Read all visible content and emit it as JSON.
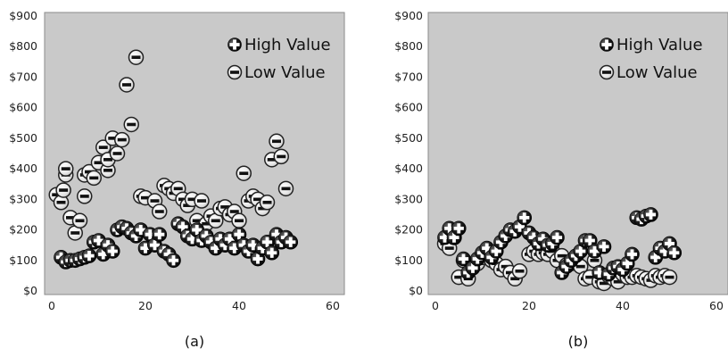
{
  "chart_data": [
    {
      "type": "scatter",
      "caption": "(a)",
      "xlim": [
        0,
        60
      ],
      "ylim": [
        0,
        900
      ],
      "x_ticks": [
        "0",
        "20",
        "40",
        "60"
      ],
      "y_ticks": [
        "$0",
        "$100",
        "$200",
        "$300",
        "$400",
        "$500",
        "$600",
        "$700",
        "$800",
        "$900"
      ],
      "grid": false,
      "legend_position": "top-right",
      "series": [
        {
          "name": "High Value",
          "marker": "plus",
          "points": [
            [
              2,
              110
            ],
            [
              3,
              95
            ],
            [
              4,
              100
            ],
            [
              5,
              100
            ],
            [
              6,
              105
            ],
            [
              7,
              110
            ],
            [
              8,
              115
            ],
            [
              9,
              160
            ],
            [
              10,
              165
            ],
            [
              11,
              120
            ],
            [
              12,
              150
            ],
            [
              13,
              130
            ],
            [
              14,
              200
            ],
            [
              15,
              210
            ],
            [
              16,
              205
            ],
            [
              17,
              190
            ],
            [
              18,
              180
            ],
            [
              19,
              200
            ],
            [
              20,
              140
            ],
            [
              21,
              185
            ],
            [
              22,
              150
            ],
            [
              23,
              185
            ],
            [
              24,
              130
            ],
            [
              25,
              120
            ],
            [
              26,
              100
            ],
            [
              27,
              220
            ],
            [
              28,
              210
            ],
            [
              29,
              180
            ],
            [
              30,
              170
            ],
            [
              31,
              200
            ],
            [
              32,
              165
            ],
            [
              33,
              180
            ],
            [
              34,
              160
            ],
            [
              35,
              140
            ],
            [
              36,
              170
            ],
            [
              37,
              150
            ],
            [
              38,
              170
            ],
            [
              39,
              140
            ],
            [
              40,
              185
            ],
            [
              41,
              150
            ],
            [
              42,
              130
            ],
            [
              43,
              150
            ],
            [
              44,
              105
            ],
            [
              45,
              140
            ],
            [
              46,
              160
            ],
            [
              47,
              125
            ],
            [
              48,
              185
            ],
            [
              49,
              160
            ],
            [
              50,
              175
            ],
            [
              51,
              160
            ]
          ]
        },
        {
          "name": "Low Value",
          "marker": "minus",
          "points": [
            [
              1,
              315
            ],
            [
              2,
              290
            ],
            [
              2.5,
              330
            ],
            [
              3,
              380
            ],
            [
              3,
              400
            ],
            [
              4,
              240
            ],
            [
              5,
              190
            ],
            [
              6,
              230
            ],
            [
              7,
              310
            ],
            [
              7,
              380
            ],
            [
              8,
              390
            ],
            [
              9,
              370
            ],
            [
              10,
              420
            ],
            [
              11,
              470
            ],
            [
              12,
              395
            ],
            [
              12,
              430
            ],
            [
              13,
              500
            ],
            [
              14,
              450
            ],
            [
              15,
              495
            ],
            [
              16,
              675
            ],
            [
              17,
              545
            ],
            [
              18,
              765
            ],
            [
              19,
              310
            ],
            [
              20,
              305
            ],
            [
              22,
              295
            ],
            [
              23,
              260
            ],
            [
              24,
              345
            ],
            [
              25,
              335
            ],
            [
              26,
              320
            ],
            [
              27,
              335
            ],
            [
              28,
              300
            ],
            [
              29,
              280
            ],
            [
              30,
              300
            ],
            [
              31,
              230
            ],
            [
              32,
              295
            ],
            [
              33,
              220
            ],
            [
              34,
              245
            ],
            [
              35,
              230
            ],
            [
              36,
              270
            ],
            [
              37,
              275
            ],
            [
              38,
              250
            ],
            [
              39,
              260
            ],
            [
              40,
              230
            ],
            [
              41,
              385
            ],
            [
              42,
              295
            ],
            [
              43,
              310
            ],
            [
              44,
              300
            ],
            [
              45,
              270
            ],
            [
              46,
              290
            ],
            [
              47,
              430
            ],
            [
              48,
              490
            ],
            [
              49,
              440
            ],
            [
              50,
              335
            ]
          ]
        }
      ]
    },
    {
      "type": "scatter",
      "caption": "(b)",
      "xlim": [
        0,
        60
      ],
      "ylim": [
        0,
        900
      ],
      "x_ticks": [
        "0",
        "20",
        "40",
        "60"
      ],
      "y_ticks": [
        "$0",
        "$100",
        "$200",
        "$300",
        "$400",
        "$500",
        "$600",
        "$700",
        "$800",
        "$900"
      ],
      "grid": false,
      "legend_position": "top-right",
      "series": [
        {
          "name": "High Value",
          "marker": "plus",
          "points": [
            [
              2,
              175
            ],
            [
              3,
              205
            ],
            [
              4,
              175
            ],
            [
              5,
              205
            ],
            [
              6,
              105
            ],
            [
              7,
              60
            ],
            [
              8,
              75
            ],
            [
              9,
              105
            ],
            [
              10,
              125
            ],
            [
              11,
              140
            ],
            [
              12,
              110
            ],
            [
              13,
              130
            ],
            [
              14,
              160
            ],
            [
              15,
              180
            ],
            [
              16,
              200
            ],
            [
              17,
              195
            ],
            [
              18,
              210
            ],
            [
              19,
              240
            ],
            [
              20,
              190
            ],
            [
              21,
              175
            ],
            [
              22,
              155
            ],
            [
              23,
              170
            ],
            [
              24,
              150
            ],
            [
              25,
              155
            ],
            [
              26,
              175
            ],
            [
              27,
              60
            ],
            [
              28,
              80
            ],
            [
              29,
              100
            ],
            [
              30,
              115
            ],
            [
              31,
              130
            ],
            [
              32,
              165
            ],
            [
              33,
              165
            ],
            [
              34,
              130
            ],
            [
              35,
              60
            ],
            [
              36,
              145
            ],
            [
              37,
              55
            ],
            [
              38,
              75
            ],
            [
              39,
              80
            ],
            [
              40,
              70
            ],
            [
              41,
              90
            ],
            [
              42,
              120
            ],
            [
              43,
              240
            ],
            [
              44,
              235
            ],
            [
              45,
              245
            ],
            [
              46,
              250
            ],
            [
              47,
              110
            ],
            [
              48,
              140
            ],
            [
              49,
              130
            ],
            [
              50,
              155
            ],
            [
              51,
              125
            ]
          ]
        },
        {
          "name": "Low Value",
          "marker": "minus",
          "points": [
            [
              2,
              155
            ],
            [
              3,
              140
            ],
            [
              4,
              175
            ],
            [
              5,
              45
            ],
            [
              6,
              100
            ],
            [
              7,
              40
            ],
            [
              9,
              90
            ],
            [
              10,
              110
            ],
            [
              11,
              120
            ],
            [
              12,
              100
            ],
            [
              13,
              90
            ],
            [
              14,
              70
            ],
            [
              15,
              80
            ],
            [
              16,
              60
            ],
            [
              17,
              40
            ],
            [
              18,
              65
            ],
            [
              20,
              120
            ],
            [
              21,
              130
            ],
            [
              22,
              120
            ],
            [
              23,
              125
            ],
            [
              24,
              120
            ],
            [
              25,
              130
            ],
            [
              26,
              100
            ],
            [
              27,
              115
            ],
            [
              28,
              85
            ],
            [
              29,
              90
            ],
            [
              30,
              105
            ],
            [
              31,
              80
            ],
            [
              32,
              40
            ],
            [
              33,
              45
            ],
            [
              34,
              100
            ],
            [
              35,
              30
            ],
            [
              36,
              25
            ],
            [
              37,
              50
            ],
            [
              38,
              40
            ],
            [
              39,
              30
            ],
            [
              40,
              55
            ],
            [
              41,
              45
            ],
            [
              42,
              45
            ],
            [
              43,
              50
            ],
            [
              44,
              45
            ],
            [
              45,
              40
            ],
            [
              46,
              35
            ],
            [
              47,
              50
            ],
            [
              48,
              45
            ],
            [
              49,
              50
            ],
            [
              50,
              45
            ]
          ]
        }
      ]
    }
  ]
}
